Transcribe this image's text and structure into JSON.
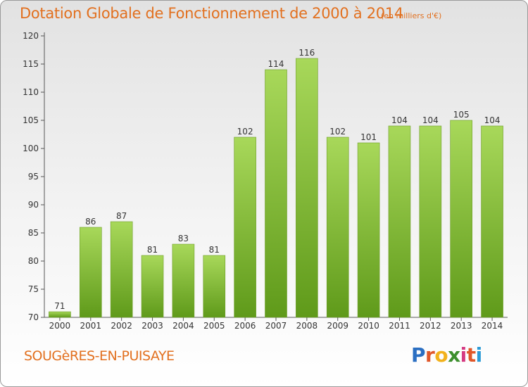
{
  "title": "Dotation Globale de Fonctionnement de 2000 à 2014",
  "unit_note": "(en milliers d'€)",
  "commune": "SOUGèRES-EN-PUISAYE",
  "brand": {
    "letters": [
      "P",
      "r",
      "o",
      "x",
      "i",
      "t",
      "i"
    ],
    "colors": [
      "#2b6fc2",
      "#e0572a",
      "#f2b21c",
      "#3c8f2d",
      "#d53a82",
      "#e0572a",
      "#2b9ad6"
    ]
  },
  "colors": {
    "bar_light": "#a8d85a",
    "bar_dark": "#5f9a1a",
    "title": "#e2701f",
    "grid": "#bbbbbb"
  },
  "chart_data": {
    "type": "bar",
    "categories": [
      "2000",
      "2001",
      "2002",
      "2003",
      "2004",
      "2005",
      "2006",
      "2007",
      "2008",
      "2009",
      "2010",
      "2011",
      "2012",
      "2013",
      "2014"
    ],
    "values": [
      71,
      86,
      87,
      81,
      83,
      81,
      102,
      114,
      116,
      102,
      101,
      104,
      104,
      105,
      104
    ],
    "ylim": [
      70,
      120
    ],
    "yticks": [
      70,
      75,
      80,
      85,
      90,
      95,
      100,
      105,
      110,
      115,
      120
    ],
    "title": "Dotation Globale de Fonctionnement de 2000 à 2014",
    "xlabel": "",
    "ylabel": "",
    "grid": false,
    "data_labels": true
  }
}
